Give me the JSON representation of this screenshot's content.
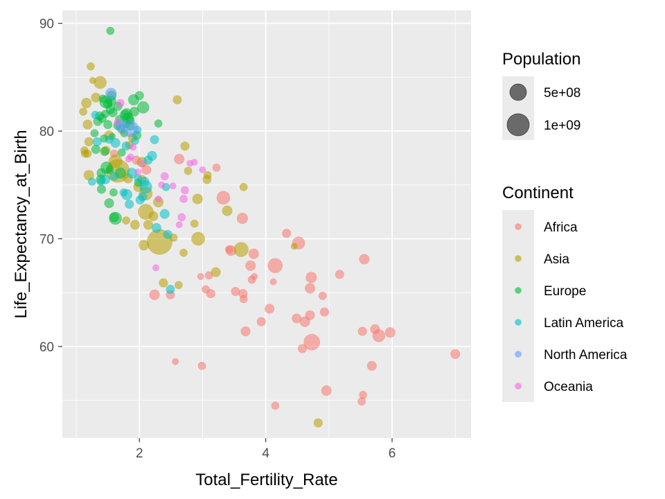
{
  "chart_data": {
    "type": "scatter",
    "title": "",
    "xlabel": "Total_Fertility_Rate",
    "ylabel": "Life_Expectancy_at_Birth",
    "xlim": [
      0.78,
      7.25
    ],
    "ylim": [
      51.5,
      91.2
    ],
    "x_ticks": [
      2,
      4,
      6
    ],
    "y_ticks": [
      60,
      70,
      80,
      90
    ],
    "x_tick_labels": [
      "2",
      "4",
      "6"
    ],
    "y_tick_labels": [
      "60",
      "70",
      "80",
      "90"
    ],
    "grid": true,
    "background": "#ebebeb",
    "point_alpha": 0.55,
    "legend_position": "right",
    "size_legend": {
      "title": "Population",
      "entries": [
        {
          "label": "5e+08",
          "population": 500000000
        },
        {
          "label": "1e+09",
          "population": 1000000000
        }
      ]
    },
    "color_legend": {
      "title": "Continent",
      "entries": [
        {
          "label": "Africa",
          "color": "#f8766d"
        },
        {
          "label": "Asia",
          "color": "#b79f00"
        },
        {
          "label": "Europe",
          "color": "#00ba38"
        },
        {
          "label": "Latin America",
          "color": "#00bfc4"
        },
        {
          "label": "North America",
          "color": "#619cff"
        },
        {
          "label": "Oceania",
          "color": "#f564e3"
        }
      ]
    },
    "series": [
      {
        "name": "Africa",
        "color": "#f8766d",
        "points": [
          [
            7.0,
            59.3,
            20
          ],
          [
            5.97,
            61.3,
            25
          ],
          [
            5.79,
            61.0,
            45
          ],
          [
            5.73,
            61.6,
            20
          ],
          [
            5.68,
            58.2,
            20
          ],
          [
            5.56,
            68.1,
            25
          ],
          [
            5.54,
            55.5,
            10
          ],
          [
            5.53,
            61.4,
            15
          ],
          [
            5.52,
            54.9,
            10
          ],
          [
            5.17,
            66.7,
            15
          ],
          [
            4.96,
            55.9,
            25
          ],
          [
            4.93,
            63.2,
            15
          ],
          [
            4.9,
            64.7,
            10
          ],
          [
            4.73,
            60.4,
            90
          ],
          [
            4.72,
            66.4,
            30
          ],
          [
            4.7,
            65.4,
            25
          ],
          [
            4.7,
            62.9,
            20
          ],
          [
            4.62,
            62.3,
            25
          ],
          [
            4.58,
            59.8,
            15
          ],
          [
            4.52,
            69.6,
            45
          ],
          [
            4.49,
            62.6,
            20
          ],
          [
            4.33,
            70.5,
            15
          ],
          [
            4.15,
            67.5,
            70
          ],
          [
            4.15,
            54.5,
            10
          ],
          [
            4.12,
            66.0,
            5
          ],
          [
            4.06,
            63.5,
            20
          ],
          [
            3.93,
            62.3,
            15
          ],
          [
            3.82,
            66.5,
            5
          ],
          [
            3.81,
            68.6,
            25
          ],
          [
            3.78,
            66.2,
            10
          ],
          [
            3.76,
            67.5,
            25
          ],
          [
            3.68,
            61.4,
            20
          ],
          [
            3.65,
            64.4,
            10
          ],
          [
            3.64,
            64.9,
            15
          ],
          [
            3.63,
            71.9,
            30
          ],
          [
            3.52,
            65.1,
            15
          ],
          [
            3.45,
            68.9,
            25
          ],
          [
            3.42,
            69.0,
            10
          ],
          [
            3.33,
            73.8,
            55
          ],
          [
            3.22,
            76.6,
            10
          ],
          [
            3.13,
            64.9,
            15
          ],
          [
            3.1,
            66.6,
            10
          ],
          [
            3.05,
            65.3,
            10
          ],
          [
            2.99,
            58.2,
            10
          ],
          [
            2.97,
            66.5,
            5
          ],
          [
            2.63,
            77.4,
            25
          ],
          [
            2.57,
            58.6,
            5
          ],
          [
            2.49,
            64.8,
            15
          ],
          [
            2.24,
            64.8,
            25
          ],
          [
            2.11,
            76.4,
            20
          ],
          [
            1.95,
            77.3,
            15
          ],
          [
            1.72,
            80.1,
            10
          ],
          [
            1.6,
            77.9,
            10
          ]
        ]
      },
      {
        "name": "Asia",
        "color": "#b79f00",
        "points": [
          [
            4.83,
            52.9,
            15
          ],
          [
            4.45,
            69.3,
            5
          ],
          [
            3.65,
            74.8,
            10
          ],
          [
            3.61,
            69.0,
            70
          ],
          [
            3.39,
            72.6,
            25
          ],
          [
            3.21,
            66.9,
            20
          ],
          [
            3.08,
            75.9,
            10
          ],
          [
            3.07,
            75.5,
            15
          ],
          [
            2.93,
            70.0,
            55
          ],
          [
            2.92,
            73.7,
            25
          ],
          [
            2.87,
            71.4,
            10
          ],
          [
            2.77,
            76.3,
            10
          ],
          [
            2.72,
            78.6,
            15
          ],
          [
            2.7,
            68.7,
            10
          ],
          [
            2.62,
            65.7,
            10
          ],
          [
            2.6,
            82.9,
            15
          ],
          [
            2.54,
            70.1,
            10
          ],
          [
            2.38,
            65.9,
            15
          ],
          [
            2.32,
            69.7,
            270
          ],
          [
            2.3,
            73.4,
            25
          ],
          [
            2.22,
            72.1,
            20
          ],
          [
            2.14,
            71.3,
            20
          ],
          [
            2.1,
            72.5,
            80
          ],
          [
            2.1,
            74.2,
            55
          ],
          [
            2.07,
            69.4,
            25
          ],
          [
            2.04,
            77.1,
            25
          ],
          [
            2.04,
            75.5,
            15
          ],
          [
            1.98,
            74.8,
            20
          ],
          [
            1.93,
            71.3,
            20
          ],
          [
            1.89,
            79.4,
            15
          ],
          [
            1.84,
            78.7,
            10
          ],
          [
            1.82,
            75.6,
            20
          ],
          [
            1.79,
            71.7,
            10
          ],
          [
            1.66,
            76.3,
            220
          ],
          [
            1.62,
            77.2,
            55
          ],
          [
            1.52,
            79.6,
            20
          ],
          [
            1.47,
            78.2,
            15
          ],
          [
            1.38,
            84.5,
            45
          ],
          [
            1.31,
            83.1,
            20
          ],
          [
            1.26,
            84.7,
            5
          ],
          [
            1.23,
            86.0,
            10
          ],
          [
            1.2,
            75.9,
            25
          ],
          [
            1.2,
            79.0,
            15
          ],
          [
            1.18,
            77.9,
            10
          ],
          [
            1.18,
            80.6,
            20
          ],
          [
            1.16,
            82.6,
            25
          ],
          [
            1.14,
            77.9,
            10
          ],
          [
            1.13,
            78.2,
            10
          ],
          [
            1.11,
            81.8,
            10
          ]
        ]
      },
      {
        "name": "Europe",
        "color": "#00ba38",
        "points": [
          [
            2.3,
            80.7,
            10
          ],
          [
            2.06,
            82.2,
            40
          ],
          [
            2.0,
            83.3,
            15
          ],
          [
            1.98,
            75.2,
            10
          ],
          [
            1.96,
            79.6,
            15
          ],
          [
            1.92,
            81.8,
            20
          ],
          [
            1.91,
            82.9,
            30
          ],
          [
            1.86,
            81.0,
            10
          ],
          [
            1.85,
            80.5,
            20
          ],
          [
            1.82,
            81.2,
            30
          ],
          [
            1.8,
            81.6,
            30
          ],
          [
            1.79,
            80.7,
            15
          ],
          [
            1.77,
            81.5,
            25
          ],
          [
            1.76,
            79.8,
            10
          ],
          [
            1.72,
            78.0,
            10
          ],
          [
            1.7,
            76.1,
            30
          ],
          [
            1.68,
            81.1,
            10
          ],
          [
            1.66,
            82.3,
            15
          ],
          [
            1.65,
            80.5,
            10
          ],
          [
            1.62,
            71.9,
            45
          ],
          [
            1.6,
            72.0,
            20
          ],
          [
            1.59,
            74.3,
            10
          ],
          [
            1.58,
            81.7,
            15
          ],
          [
            1.57,
            79.5,
            5
          ],
          [
            1.56,
            83.3,
            20
          ],
          [
            1.55,
            82.8,
            25
          ],
          [
            1.54,
            82.0,
            15
          ],
          [
            1.54,
            89.3,
            10
          ],
          [
            1.53,
            76.4,
            10
          ],
          [
            1.52,
            73.3,
            20
          ],
          [
            1.5,
            82.5,
            15
          ],
          [
            1.5,
            80.6,
            15
          ],
          [
            1.48,
            76.6,
            40
          ],
          [
            1.47,
            82.7,
            45
          ],
          [
            1.46,
            81.6,
            10
          ],
          [
            1.45,
            78.1,
            15
          ],
          [
            1.44,
            79.3,
            10
          ],
          [
            1.42,
            83.0,
            10
          ],
          [
            1.41,
            81.2,
            15
          ],
          [
            1.4,
            76.1,
            20
          ],
          [
            1.4,
            74.6,
            15
          ],
          [
            1.39,
            75.5,
            20
          ],
          [
            1.37,
            81.4,
            15
          ],
          [
            1.34,
            80.9,
            15
          ],
          [
            1.31,
            78.3,
            15
          ],
          [
            1.29,
            79.8,
            10
          ]
        ]
      },
      {
        "name": "Latin America",
        "color": "#00bfc4",
        "points": [
          [
            2.49,
            65.3,
            15
          ],
          [
            2.45,
            70.4,
            15
          ],
          [
            2.42,
            74.8,
            10
          ],
          [
            2.4,
            72.3,
            20
          ],
          [
            2.27,
            71.0,
            20
          ],
          [
            2.24,
            79.2,
            15
          ],
          [
            2.2,
            77.7,
            20
          ],
          [
            2.14,
            77.3,
            15
          ],
          [
            2.1,
            74.8,
            45
          ],
          [
            2.08,
            75.3,
            20
          ],
          [
            2.05,
            73.9,
            15
          ],
          [
            2.01,
            73.6,
            15
          ],
          [
            1.98,
            75.6,
            10
          ],
          [
            1.97,
            80.1,
            10
          ],
          [
            1.93,
            79.1,
            10
          ],
          [
            1.88,
            76.1,
            25
          ],
          [
            1.84,
            73.2,
            15
          ],
          [
            1.8,
            74.1,
            30
          ],
          [
            1.79,
            78.6,
            15
          ],
          [
            1.75,
            74.3,
            10
          ],
          [
            1.7,
            80.3,
            15
          ],
          [
            1.62,
            78.9,
            20
          ],
          [
            1.6,
            75.8,
            15
          ],
          [
            1.52,
            79.2,
            10
          ],
          [
            1.46,
            75.5,
            20
          ],
          [
            1.39,
            75.3,
            10
          ],
          [
            1.33,
            79.0,
            15
          ],
          [
            1.3,
            81.5,
            10
          ],
          [
            1.25,
            75.3,
            10
          ]
        ]
      },
      {
        "name": "North America",
        "color": "#619cff",
        "points": [
          [
            1.86,
            80.2,
            90
          ],
          [
            1.7,
            80.6,
            25
          ],
          [
            1.55,
            83.5,
            30
          ]
        ]
      },
      {
        "name": "Oceania",
        "color": "#f564e3",
        "points": [
          [
            3.0,
            76.4,
            5
          ],
          [
            2.87,
            77.1,
            5
          ],
          [
            2.8,
            77.0,
            5
          ],
          [
            2.72,
            74.5,
            10
          ],
          [
            2.7,
            73.7,
            10
          ],
          [
            2.67,
            72.0,
            10
          ],
          [
            2.63,
            71.3,
            5
          ],
          [
            2.53,
            74.9,
            5
          ],
          [
            2.4,
            75.8,
            10
          ],
          [
            2.35,
            75.0,
            5
          ],
          [
            2.3,
            73.7,
            5
          ],
          [
            2.26,
            67.3,
            5
          ],
          [
            2.04,
            77.0,
            5
          ],
          [
            1.98,
            76.2,
            5
          ],
          [
            1.9,
            78.5,
            5
          ],
          [
            1.86,
            77.6,
            5
          ],
          [
            1.83,
            77.4,
            5
          ],
          [
            1.7,
            82.6,
            10
          ],
          [
            1.65,
            80.8,
            5
          ]
        ]
      }
    ]
  }
}
